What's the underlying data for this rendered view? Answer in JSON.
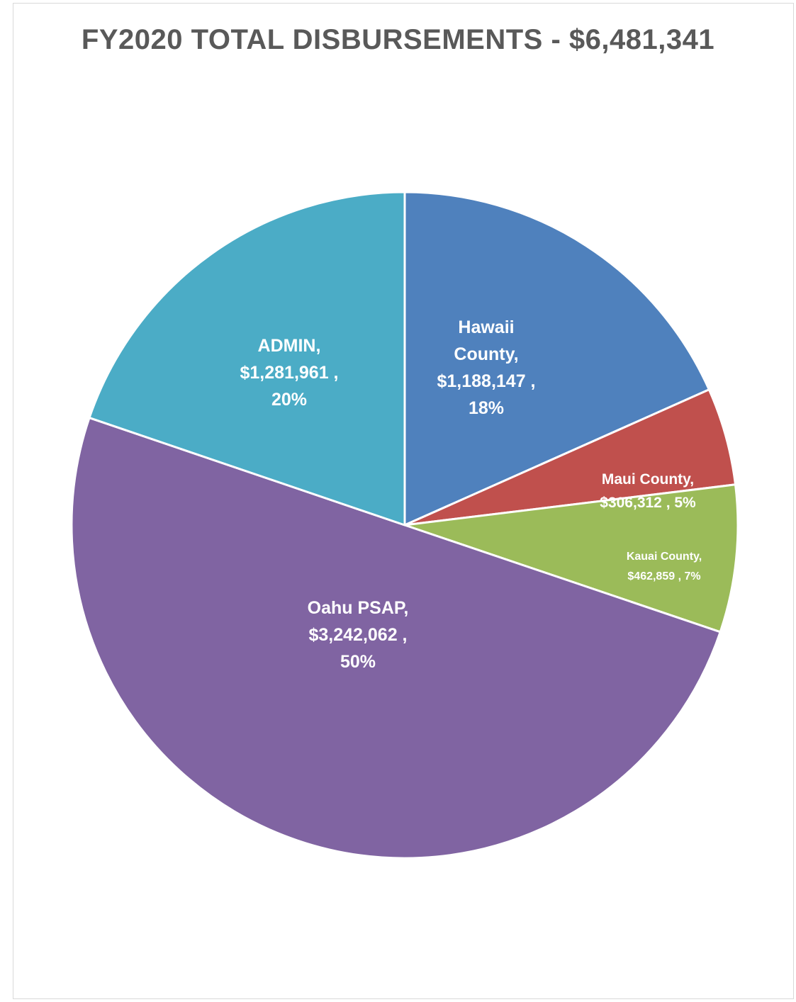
{
  "chart_data": {
    "type": "pie",
    "title": "FY2020 TOTAL DISBURSEMENTS - $6,481,341",
    "slices": [
      {
        "name": "Hawaii County",
        "value": 1188147,
        "percent": 18,
        "color": "#4F81BD",
        "label_lines": [
          "Hawaii",
          "County,",
          "$1,188,147 ,",
          "18%"
        ]
      },
      {
        "name": "Maui County",
        "value": 306312,
        "percent": 5,
        "color": "#C0504D",
        "label_lines": [
          "Maui County,",
          "$306,312 , 5%"
        ]
      },
      {
        "name": "Kauai County",
        "value": 462859,
        "percent": 7,
        "color": "#9BBB59",
        "label_lines": [
          "Kauai County,",
          "$462,859 , 7%"
        ]
      },
      {
        "name": "Oahu PSAP",
        "value": 3242062,
        "percent": 50,
        "color": "#8064A2",
        "label_lines": [
          "Oahu PSAP,",
          "$3,242,062 ,",
          "50%"
        ]
      },
      {
        "name": "ADMIN",
        "value": 1281961,
        "percent": 20,
        "color": "#4BACC6",
        "label_lines": [
          "ADMIN,",
          "$1,281,961 ,",
          "20%"
        ]
      }
    ],
    "start_angle": "12 o'clock",
    "direction": "clockwise",
    "legend": "none"
  }
}
